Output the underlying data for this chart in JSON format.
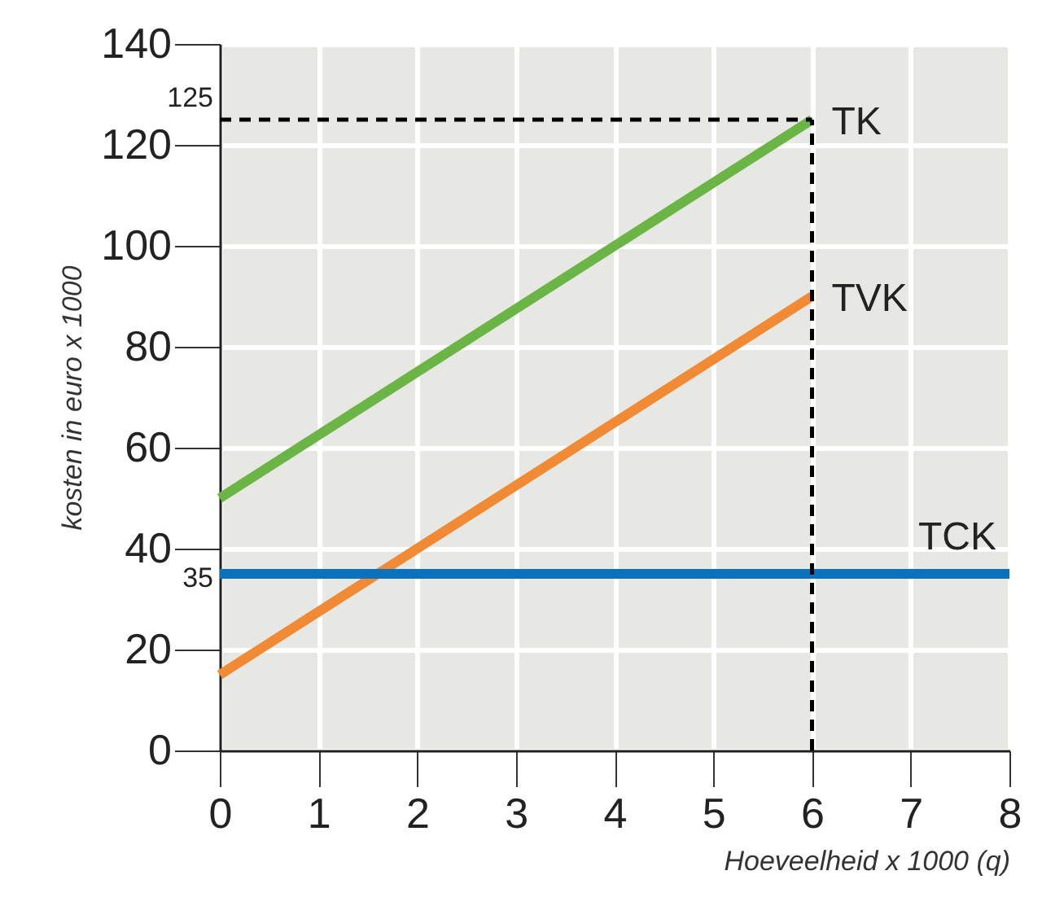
{
  "chart_data": {
    "type": "line",
    "xlabel": "Hoeveelheid x 1000 (q)",
    "ylabel": "kosten in euro x 1000",
    "xlim": [
      0,
      8
    ],
    "xticks": [
      0,
      1,
      2,
      3,
      4,
      5,
      6,
      7,
      8
    ],
    "ylim": [
      0,
      140
    ],
    "yticks": [
      0,
      20,
      40,
      60,
      80,
      100,
      120,
      140
    ],
    "grid": true,
    "marker": "none",
    "line_style": "solid",
    "series": [
      {
        "name": "TK",
        "color": "#6ab545",
        "x": [
          0,
          6
        ],
        "values": [
          50,
          125
        ]
      },
      {
        "name": "TVK",
        "color": "#f08a34",
        "x": [
          0,
          6
        ],
        "values": [
          15,
          90
        ]
      },
      {
        "name": "TCK",
        "color": "#0a72bc",
        "x": [
          0,
          8
        ],
        "values": [
          35,
          35
        ]
      }
    ],
    "ref_lines": [
      {
        "axis": "y",
        "value": 125,
        "label": "125",
        "color": "#000000",
        "line_style": "dashed"
      },
      {
        "axis": "x",
        "value": 6,
        "label": null,
        "color": "#000000",
        "line_style": "dashed"
      }
    ],
    "annotations": [
      {
        "text": "35",
        "x": 0,
        "y": 35
      }
    ]
  }
}
